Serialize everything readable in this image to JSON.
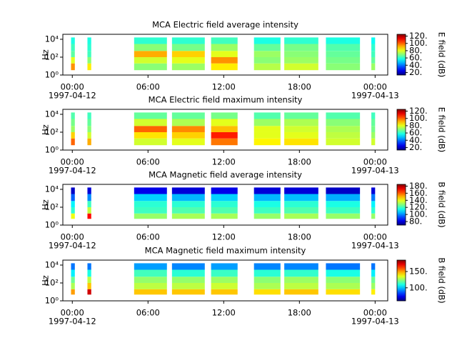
{
  "chart_data": [
    {
      "type": "heatmap",
      "title": "MCA  Electric field average intensity",
      "ylabel": "Hz",
      "colorbar_label": "E field (dB)",
      "colormap": "jet",
      "log_y": true,
      "xlim": [
        -0.75,
        25
      ],
      "xticks": [
        {
          "value": 0,
          "label": "00:00"
        },
        {
          "value": 6,
          "label": "06:00"
        },
        {
          "value": 12,
          "label": "12:00"
        },
        {
          "value": 18,
          "label": "18:00"
        },
        {
          "value": 24,
          "label": "00:00"
        }
      ],
      "xdates": [
        {
          "value": 0,
          "label": "1997-04-12"
        },
        {
          "value": 24,
          "label": "1997-04-13"
        }
      ],
      "ylim": [
        1,
        36000
      ],
      "yticks": [
        {
          "value": 1,
          "label": "10⁰"
        },
        {
          "value": 100,
          "label": "10²"
        },
        {
          "value": 10000,
          "label": "10⁴"
        }
      ],
      "clim": [
        13,
        125
      ],
      "cticks": [
        {
          "value": 20,
          "label": "20."
        },
        {
          "value": 40,
          "label": "40."
        },
        {
          "value": 60,
          "label": "60."
        },
        {
          "value": 80,
          "label": "80."
        },
        {
          "value": 100,
          "label": "100."
        },
        {
          "value": 120,
          "label": "120."
        }
      ],
      "x_segments": [
        [
          -0.1,
          0.2
        ],
        [
          1.2,
          1.5
        ],
        [
          4.9,
          7.5
        ],
        [
          7.9,
          10.5
        ],
        [
          11.0,
          13.1
        ],
        [
          14.4,
          16.5
        ],
        [
          16.8,
          19.5
        ],
        [
          20.1,
          22.8
        ],
        [
          23.7,
          24.0
        ]
      ],
      "y_bins": [
        3.5,
        20,
        100,
        500,
        3000,
        16000
      ],
      "z": [
        [
          95,
          80,
          65,
          62,
          58
        ],
        [
          85,
          70,
          62,
          60,
          58
        ],
        [
          70,
          78,
          92,
          70,
          60
        ],
        [
          72,
          80,
          88,
          68,
          60
        ],
        [
          85,
          95,
          80,
          72,
          62
        ],
        [
          75,
          70,
          72,
          66,
          58
        ],
        [
          78,
          72,
          70,
          68,
          60
        ],
        [
          70,
          68,
          66,
          64,
          58
        ],
        [
          72,
          66,
          62,
          60,
          56
        ]
      ]
    },
    {
      "type": "heatmap",
      "title": "MCA  Electric field maximum intensity",
      "ylabel": "Hz",
      "colorbar_label": "E field (dB)",
      "colormap": "jet",
      "log_y": true,
      "xlim": [
        -0.75,
        25
      ],
      "xticks": [
        {
          "value": 0,
          "label": "00:00"
        },
        {
          "value": 6,
          "label": "06:00"
        },
        {
          "value": 12,
          "label": "12:00"
        },
        {
          "value": 18,
          "label": "18:00"
        },
        {
          "value": 24,
          "label": "00:00"
        }
      ],
      "xdates": [
        {
          "value": 0,
          "label": "1997-04-12"
        },
        {
          "value": 24,
          "label": "1997-04-13"
        }
      ],
      "ylim": [
        1,
        36000
      ],
      "yticks": [
        {
          "value": 1,
          "label": "10⁰"
        },
        {
          "value": 100,
          "label": "10²"
        },
        {
          "value": 10000,
          "label": "10⁴"
        }
      ],
      "clim": [
        13,
        125
      ],
      "cticks": [
        {
          "value": 20,
          "label": "20."
        },
        {
          "value": 40,
          "label": "40."
        },
        {
          "value": 60,
          "label": "60."
        },
        {
          "value": 80,
          "label": "80."
        },
        {
          "value": 100,
          "label": "100."
        },
        {
          "value": 120,
          "label": "120."
        }
      ],
      "x_segments": [
        [
          -0.1,
          0.2
        ],
        [
          1.2,
          1.5
        ],
        [
          4.9,
          7.5
        ],
        [
          7.9,
          10.5
        ],
        [
          11.0,
          13.1
        ],
        [
          14.4,
          16.5
        ],
        [
          16.8,
          19.5
        ],
        [
          20.1,
          22.8
        ],
        [
          23.7,
          24.0
        ]
      ],
      "y_bins": [
        3.5,
        20,
        100,
        500,
        3000,
        16000
      ],
      "z": [
        [
          100,
          88,
          72,
          68,
          64
        ],
        [
          92,
          78,
          70,
          66,
          62
        ],
        [
          78,
          86,
          100,
          78,
          66
        ],
        [
          80,
          88,
          96,
          74,
          66
        ],
        [
          98,
          108,
          90,
          80,
          68
        ],
        [
          84,
          80,
          80,
          72,
          64
        ],
        [
          86,
          80,
          78,
          74,
          66
        ],
        [
          78,
          76,
          74,
          70,
          64
        ],
        [
          78,
          72,
          68,
          66,
          62
        ]
      ]
    },
    {
      "type": "heatmap",
      "title": "MCA  Magnetic field average intensity",
      "ylabel": "Hz",
      "colorbar_label": "B field (dB)",
      "colormap": "jet",
      "log_y": true,
      "xlim": [
        -0.75,
        25
      ],
      "xticks": [
        {
          "value": 0,
          "label": "00:00"
        },
        {
          "value": 6,
          "label": "06:00"
        },
        {
          "value": 12,
          "label": "12:00"
        },
        {
          "value": 18,
          "label": "18:00"
        },
        {
          "value": 24,
          "label": "00:00"
        }
      ],
      "xdates": [
        {
          "value": 0,
          "label": "1997-04-12"
        },
        {
          "value": 24,
          "label": "1997-04-13"
        }
      ],
      "ylim": [
        1,
        36000
      ],
      "yticks": [
        {
          "value": 1,
          "label": "10⁰"
        },
        {
          "value": 100,
          "label": "10²"
        },
        {
          "value": 10000,
          "label": "10⁴"
        }
      ],
      "clim": [
        70,
        185
      ],
      "cticks": [
        {
          "value": 80,
          "label": "80."
        },
        {
          "value": 100,
          "label": "100."
        },
        {
          "value": 120,
          "label": "120."
        },
        {
          "value": 140,
          "label": "140."
        },
        {
          "value": 160,
          "label": "160."
        },
        {
          "value": 180,
          "label": "180."
        }
      ],
      "x_segments": [
        [
          -0.1,
          0.2
        ],
        [
          1.2,
          1.5
        ],
        [
          4.9,
          7.5
        ],
        [
          7.9,
          10.5
        ],
        [
          11.0,
          13.1
        ],
        [
          14.4,
          16.5
        ],
        [
          16.8,
          19.5
        ],
        [
          20.1,
          22.8
        ],
        [
          23.7,
          24.0
        ]
      ],
      "y_bins": [
        5,
        20,
        100,
        500,
        3000,
        16000
      ],
      "z": [
        [
          140,
          118,
          112,
          95,
          78
        ],
        [
          170,
          135,
          120,
          100,
          80
        ],
        [
          130,
          120,
          118,
          108,
          82
        ],
        [
          132,
          122,
          118,
          105,
          80
        ],
        [
          132,
          122,
          118,
          108,
          82
        ],
        [
          130,
          120,
          116,
          105,
          80
        ],
        [
          132,
          122,
          118,
          106,
          80
        ],
        [
          130,
          120,
          116,
          104,
          78
        ],
        [
          130,
          118,
          112,
          98,
          80
        ]
      ]
    },
    {
      "type": "heatmap",
      "title": "MCA  Magnetic field maximum intensity",
      "ylabel": "Hz",
      "colorbar_label": "B field (dB)",
      "colormap": "jet",
      "log_y": true,
      "xlim": [
        -0.75,
        25
      ],
      "xticks": [
        {
          "value": 0,
          "label": "00:00"
        },
        {
          "value": 6,
          "label": "06:00"
        },
        {
          "value": 12,
          "label": "12:00"
        },
        {
          "value": 18,
          "label": "18:00"
        },
        {
          "value": 24,
          "label": "00:00"
        }
      ],
      "xdates": [
        {
          "value": 0,
          "label": "1997-04-12"
        },
        {
          "value": 24,
          "label": "1997-04-13"
        }
      ],
      "ylim": [
        1,
        36000
      ],
      "yticks": [
        {
          "value": 1,
          "label": "10⁰"
        },
        {
          "value": 100,
          "label": "10²"
        },
        {
          "value": 10000,
          "label": "10⁴"
        }
      ],
      "clim": [
        60,
        185
      ],
      "cticks": [
        {
          "value": 100,
          "label": "100."
        },
        {
          "value": 150,
          "label": "150."
        }
      ],
      "x_segments": [
        [
          -0.1,
          0.2
        ],
        [
          1.2,
          1.5
        ],
        [
          4.9,
          7.5
        ],
        [
          7.9,
          10.5
        ],
        [
          11.0,
          13.1
        ],
        [
          14.4,
          16.5
        ],
        [
          16.8,
          19.5
        ],
        [
          20.1,
          22.8
        ],
        [
          23.7,
          24.0
        ]
      ],
      "y_bins": [
        5,
        20,
        100,
        500,
        3000,
        16000
      ],
      "z": [
        [
          150,
          128,
          120,
          105,
          90
        ],
        [
          175,
          145,
          130,
          110,
          90
        ],
        [
          145,
          130,
          125,
          115,
          95
        ],
        [
          145,
          130,
          125,
          112,
          92
        ],
        [
          145,
          132,
          126,
          114,
          95
        ],
        [
          142,
          128,
          124,
          112,
          92
        ],
        [
          145,
          130,
          126,
          113,
          92
        ],
        [
          142,
          128,
          124,
          110,
          90
        ],
        [
          140,
          126,
          120,
          105,
          90
        ]
      ]
    }
  ]
}
